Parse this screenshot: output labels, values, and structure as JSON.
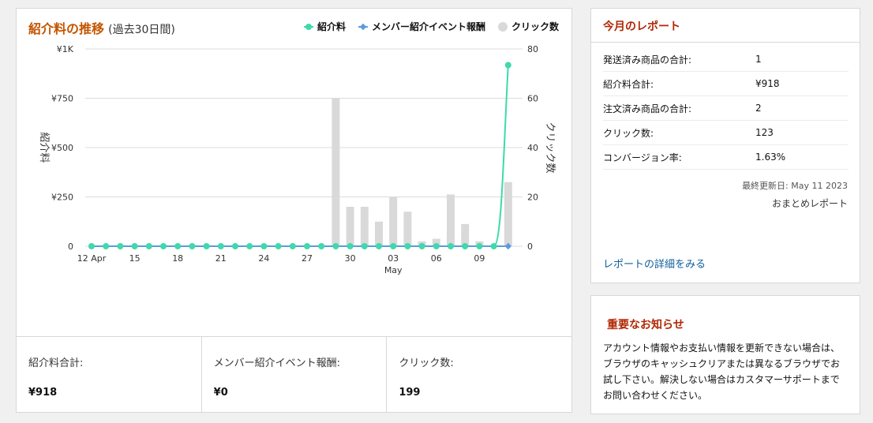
{
  "chart_card": {
    "title": "紹介料の推移",
    "subtitle": "(過去30日間)",
    "legend": [
      {
        "label": "紹介料",
        "color": "#40d9ab",
        "icon": "line-dot-icon"
      },
      {
        "label": "メンバー紹介イベント報酬",
        "color": "#5b9bde",
        "icon": "line-diamond-icon"
      },
      {
        "label": "クリック数",
        "color": "#d9d9d9",
        "icon": "bar-circle-icon"
      }
    ],
    "stats": [
      {
        "label": "紹介料合計:",
        "value": "¥918"
      },
      {
        "label": "メンバー紹介イベント報酬:",
        "value": "¥0"
      },
      {
        "label": "クリック数:",
        "value": "199"
      }
    ]
  },
  "chart_data": {
    "type": "bar+line",
    "title": "紹介料の推移",
    "subtitle": "(過去30日間)",
    "x_tick_labels": [
      "12 Apr",
      "15",
      "18",
      "21",
      "24",
      "27",
      "30",
      "03",
      "06",
      "09"
    ],
    "x_tick_indices": [
      0,
      3,
      6,
      9,
      12,
      15,
      18,
      21,
      24,
      27
    ],
    "x_secondary_label": "May",
    "x_secondary_index": 21,
    "days": 30,
    "y_left": {
      "label": "紹介料",
      "ticks": [
        "¥1K",
        "¥750",
        "¥500",
        "¥250",
        "0"
      ],
      "range": [
        0,
        1000
      ]
    },
    "y_right": {
      "label": "クリック数",
      "ticks": [
        "80",
        "60",
        "40",
        "20",
        "0"
      ],
      "range": [
        0,
        80
      ]
    },
    "series": [
      {
        "name": "クリック数",
        "type": "bar",
        "axis": "right",
        "color": "#d9d9d9",
        "values": [
          0,
          0,
          0,
          0,
          0,
          0,
          0,
          0,
          0,
          0,
          0,
          0,
          0,
          0,
          0,
          0,
          0,
          60,
          16,
          16,
          10,
          20,
          14,
          2,
          3,
          21,
          9,
          2,
          0,
          26
        ]
      },
      {
        "name": "紹介料",
        "type": "line",
        "axis": "left",
        "color": "#40d9ab",
        "values": [
          0,
          0,
          0,
          0,
          0,
          0,
          0,
          0,
          0,
          0,
          0,
          0,
          0,
          0,
          0,
          0,
          0,
          0,
          0,
          0,
          0,
          0,
          0,
          0,
          0,
          0,
          0,
          0,
          0,
          918
        ]
      },
      {
        "name": "メンバー紹介イベント報酬",
        "type": "line",
        "axis": "left",
        "color": "#5b9bde",
        "values": [
          0,
          0,
          0,
          0,
          0,
          0,
          0,
          0,
          0,
          0,
          0,
          0,
          0,
          0,
          0,
          0,
          0,
          0,
          0,
          0,
          0,
          0,
          0,
          0,
          0,
          0,
          0,
          0,
          0,
          0
        ]
      }
    ],
    "grid": true
  },
  "report": {
    "title": "今月のレポート",
    "rows": [
      {
        "label": "発送済み商品の合計:",
        "value": "1"
      },
      {
        "label": "紹介料合計:",
        "value": "¥918"
      },
      {
        "label": "注文済み商品の合計:",
        "value": "2"
      },
      {
        "label": "クリック数:",
        "value": "123"
      },
      {
        "label": "コンバージョン率:",
        "value": "1.63%"
      }
    ],
    "updated": "最終更新日: May 11 2023",
    "summary_link": "おまとめレポート",
    "detail_link": "レポートの詳細をみる"
  },
  "notice": {
    "title": "重要なお知らせ",
    "body": "アカウント情報やお支払い情報を更新できない場合は、ブラウザのキャッシュクリアまたは異なるブラウザでお試し下さい。解決しない場合はカスタマーサポートまでお問い合わせください。"
  }
}
